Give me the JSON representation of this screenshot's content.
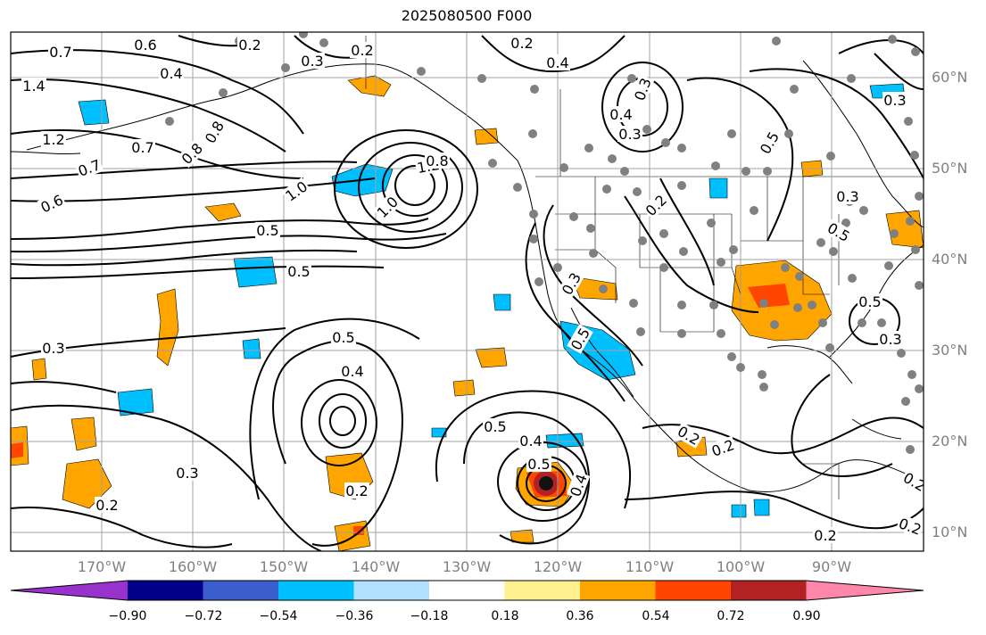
{
  "title": "2025080500 F000",
  "lon_labels": [
    "170°W",
    "160°W",
    "150°W",
    "140°W",
    "130°W",
    "120°W",
    "110°W",
    "100°W",
    "90°W"
  ],
  "lat_labels": [
    "60°N",
    "50°N",
    "40°N",
    "30°N",
    "20°N",
    "10°N"
  ],
  "colorbar": {
    "ticks": [
      "−0.90",
      "−0.72",
      "−0.54",
      "−0.36",
      "−0.18",
      "0.18",
      "0.36",
      "0.54",
      "0.72",
      "0.90"
    ],
    "colors": [
      "#9932cc",
      "#00008b",
      "#3a5fcd",
      "#00bfff",
      "#b0e2ff",
      "#ffffff",
      "#fff08f",
      "#ffa500",
      "#ff4500",
      "#b22222",
      "#ff88aa"
    ]
  },
  "contour_labels": [
    "0.7",
    "1.4",
    "1.2",
    "0.7",
    "0.6",
    "0.7",
    "0.8",
    "0.8",
    "0.2",
    "0.3",
    "0.6",
    "0.4",
    "0.2",
    "0.2",
    "0.4",
    "0.3",
    "0.3",
    "0.4",
    "0.2",
    "0.5",
    "0.3",
    "0.5",
    "1.2",
    "0.8",
    "1.0",
    "1.0",
    "0.5",
    "0.5",
    "0.3",
    "0.3",
    "0.5",
    "0.4",
    "0.3",
    "0.5",
    "0.5",
    "0.4",
    "0.5",
    "0.4",
    "0.2",
    "0.2",
    "0.2",
    "0.2",
    "0.2",
    "0.2",
    "0.2",
    "0.5",
    "0.3",
    "0.3"
  ],
  "colors": {
    "land_lines": "#000000",
    "grid": "#a0a0a0",
    "station": "#808080",
    "label": "#808080"
  }
}
